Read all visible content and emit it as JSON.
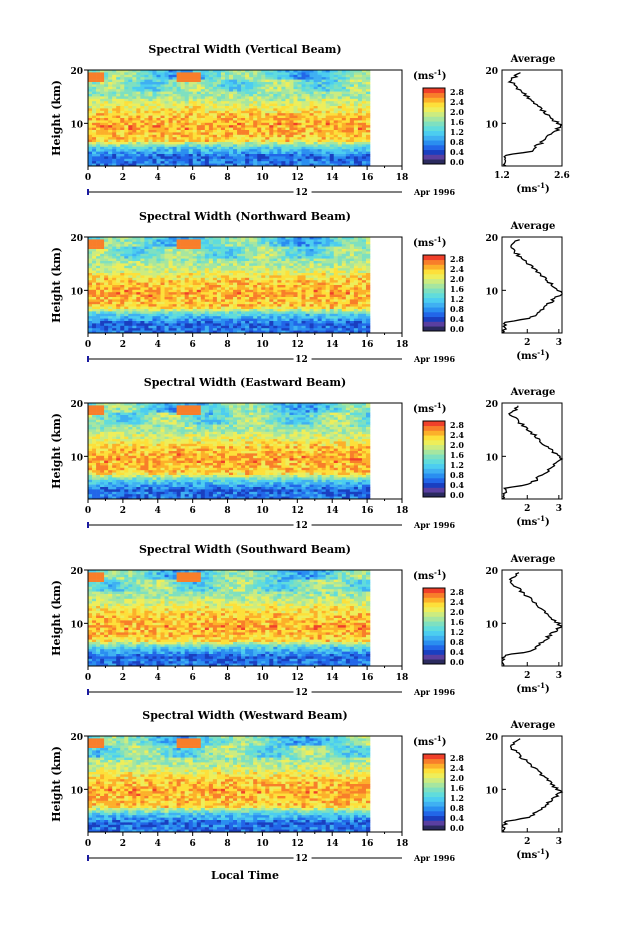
{
  "chart_data": [
    {
      "type": "heatmap",
      "title": "Spectral Width (Vertical Beam)",
      "ylabel": "Height (km)",
      "x_ticks": [
        "0",
        "2",
        "4",
        "6",
        "8",
        "10",
        "12",
        "14",
        "16",
        "18"
      ],
      "y_ticks": [
        "20",
        "10"
      ],
      "date_label": "12",
      "month_label": "Apr 1996",
      "xlim": [
        0,
        18
      ],
      "ylim": [
        2,
        20
      ],
      "colorbar": {
        "label": "(ms",
        "exp": "-1",
        "close": ")",
        "ticks": [
          "2.8",
          "2.4",
          "2.0",
          "1.6",
          "1.2",
          "0.8",
          "0.4",
          "0.0"
        ]
      },
      "average": {
        "title": "Average",
        "xlabel": "(ms",
        "exp": "-1",
        "close": ")",
        "x_ticks": [
          "1.2",
          "2.6"
        ],
        "xlim": [
          1.2,
          2.6
        ],
        "y_ticks": [
          "20",
          "10"
        ]
      }
    },
    {
      "type": "heatmap",
      "title": "Spectral Width (Northward Beam)",
      "ylabel": "Height (km)",
      "x_ticks": [
        "0",
        "2",
        "4",
        "6",
        "8",
        "10",
        "12",
        "14",
        "16",
        "18"
      ],
      "y_ticks": [
        "20",
        "10"
      ],
      "date_label": "12",
      "month_label": "Apr 1996",
      "xlim": [
        0,
        18
      ],
      "ylim": [
        2,
        20
      ],
      "colorbar": {
        "label": "(ms",
        "exp": "-1",
        "close": ")",
        "ticks": [
          "2.8",
          "2.4",
          "2.0",
          "1.6",
          "1.2",
          "0.8",
          "0.4",
          "0.0"
        ]
      },
      "average": {
        "title": "Average",
        "xlabel": "(ms",
        "exp": "-1",
        "close": ")",
        "x_ticks": [
          "2",
          "3"
        ],
        "xlim": [
          1.2,
          3.1
        ],
        "y_ticks": [
          "20",
          "10"
        ]
      }
    },
    {
      "type": "heatmap",
      "title": "Spectral Width (Eastward Beam)",
      "ylabel": "Height (km)",
      "x_ticks": [
        "0",
        "2",
        "4",
        "6",
        "8",
        "10",
        "12",
        "14",
        "16",
        "18"
      ],
      "y_ticks": [
        "20",
        "10"
      ],
      "date_label": "12",
      "month_label": "Apr 1996",
      "xlim": [
        0,
        18
      ],
      "ylim": [
        2,
        20
      ],
      "colorbar": {
        "label": "(ms",
        "exp": "-1",
        "close": ")",
        "ticks": [
          "2.8",
          "2.4",
          "2.0",
          "1.6",
          "1.2",
          "0.8",
          "0.4",
          "0.0"
        ]
      },
      "average": {
        "title": "Average",
        "xlabel": "(ms",
        "exp": "-1",
        "close": ")",
        "x_ticks": [
          "2",
          "3"
        ],
        "xlim": [
          1.2,
          3.1
        ],
        "y_ticks": [
          "20",
          "10"
        ]
      }
    },
    {
      "type": "heatmap",
      "title": "Spectral Width (Southward Beam)",
      "ylabel": "Height (km)",
      "x_ticks": [
        "0",
        "2",
        "4",
        "6",
        "8",
        "10",
        "12",
        "14",
        "16",
        "18"
      ],
      "y_ticks": [
        "20",
        "10"
      ],
      "date_label": "12",
      "month_label": "Apr 1996",
      "xlim": [
        0,
        18
      ],
      "ylim": [
        2,
        20
      ],
      "colorbar": {
        "label": "(ms",
        "exp": "-1",
        "close": ")",
        "ticks": [
          "2.8",
          "2.4",
          "2.0",
          "1.6",
          "1.2",
          "0.8",
          "0.4",
          "0.0"
        ]
      },
      "average": {
        "title": "Average",
        "xlabel": "(ms",
        "exp": "-1",
        "close": ")",
        "x_ticks": [
          "2",
          "3"
        ],
        "xlim": [
          1.2,
          3.1
        ],
        "y_ticks": [
          "20",
          "10"
        ]
      }
    },
    {
      "type": "heatmap",
      "title": "Spectral Width (Westward Beam)",
      "ylabel": "Height (km)",
      "x_ticks": [
        "0",
        "2",
        "4",
        "6",
        "8",
        "10",
        "12",
        "14",
        "16",
        "18"
      ],
      "y_ticks": [
        "20",
        "10"
      ],
      "date_label": "12",
      "month_label": "Apr 1996",
      "xlim": [
        0,
        18
      ],
      "ylim": [
        2,
        20
      ],
      "colorbar": {
        "label": "(ms",
        "exp": "-1",
        "close": ")",
        "ticks": [
          "2.8",
          "2.4",
          "2.0",
          "1.6",
          "1.2",
          "0.8",
          "0.4",
          "0.0"
        ]
      },
      "average": {
        "title": "Average",
        "xlabel": "(ms",
        "exp": "-1",
        "close": ")",
        "x_ticks": [
          "2",
          "3"
        ],
        "xlim": [
          1.2,
          3.1
        ],
        "y_ticks": [
          "20",
          "10"
        ]
      }
    }
  ],
  "xlabel": "Local Time",
  "colormap": [
    "#2a2a5e",
    "#5a3fa0",
    "#1a3fc0",
    "#2266e8",
    "#2a8ef0",
    "#3fb0f2",
    "#4ccdf0",
    "#60dcdc",
    "#7ee0c0",
    "#a6e6a0",
    "#ccec80",
    "#eeee5a",
    "#fde03a",
    "#fcb02a",
    "#f87e2a",
    "#f0402a"
  ]
}
